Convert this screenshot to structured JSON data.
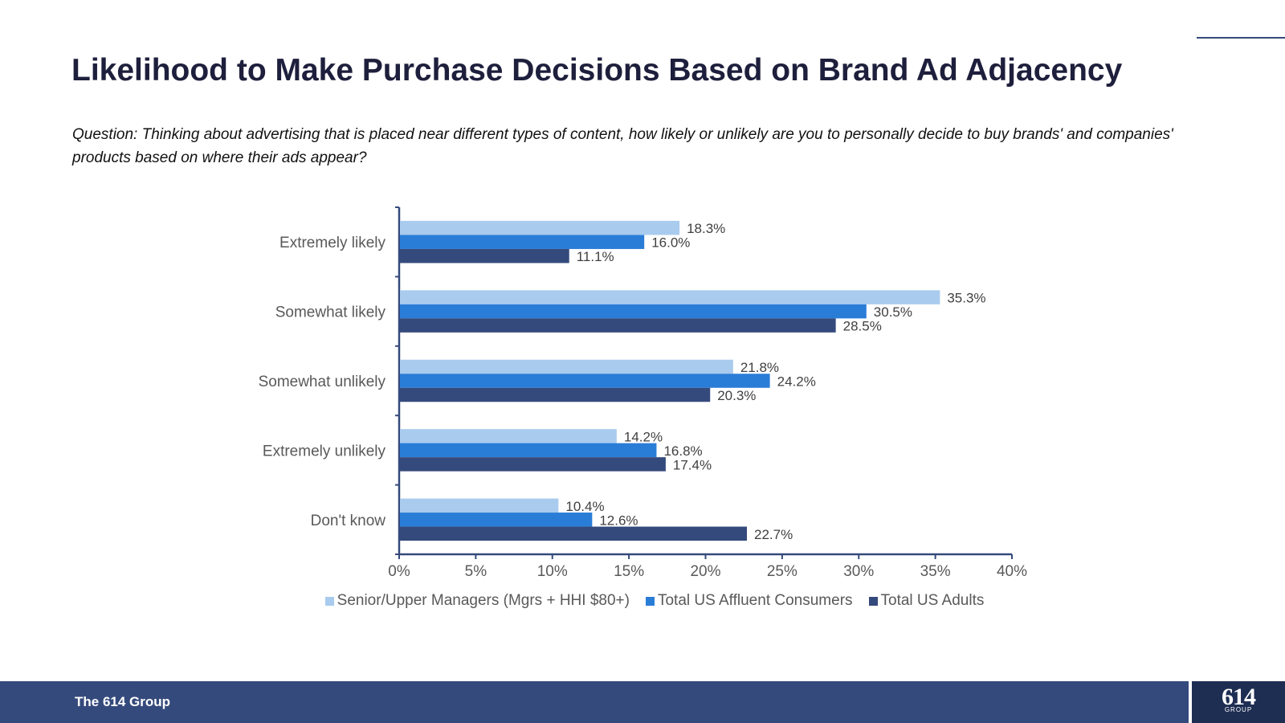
{
  "header": {
    "title": "Likelihood to Make Purchase Decisions Based on Brand Ad Adjacency",
    "question": "Question: Thinking about advertising that is placed near different types of content, how likely or unlikely are you to personally decide to buy brands' and companies' products based on where their ads appear?"
  },
  "footer": {
    "company": "The 614 Group",
    "logo_number": "614",
    "logo_sub": "GROUP"
  },
  "chart_data": {
    "type": "bar",
    "orientation": "horizontal",
    "categories": [
      "Extremely likely",
      "Somewhat likely",
      "Somewhat unlikely",
      "Extremely unlikely",
      "Don't know"
    ],
    "series": [
      {
        "name": "Senior/Upper Managers (Mgrs + HHI $80+)",
        "color": "#a9cbee",
        "values": [
          18.3,
          35.3,
          21.8,
          14.2,
          10.4
        ]
      },
      {
        "name": "Total US Affluent Consumers",
        "color": "#2a7dd7",
        "values": [
          16.0,
          30.5,
          24.2,
          16.8,
          12.6
        ]
      },
      {
        "name": "Total US Adults",
        "color": "#354a7c",
        "values": [
          11.1,
          28.5,
          20.3,
          17.4,
          22.7
        ]
      }
    ],
    "xlim": [
      0,
      40
    ],
    "x_ticks": [
      0,
      5,
      10,
      15,
      20,
      25,
      30,
      35,
      40
    ],
    "tick_format": "%",
    "value_format": "0.0%",
    "legend": "bottom",
    "grid": false
  }
}
